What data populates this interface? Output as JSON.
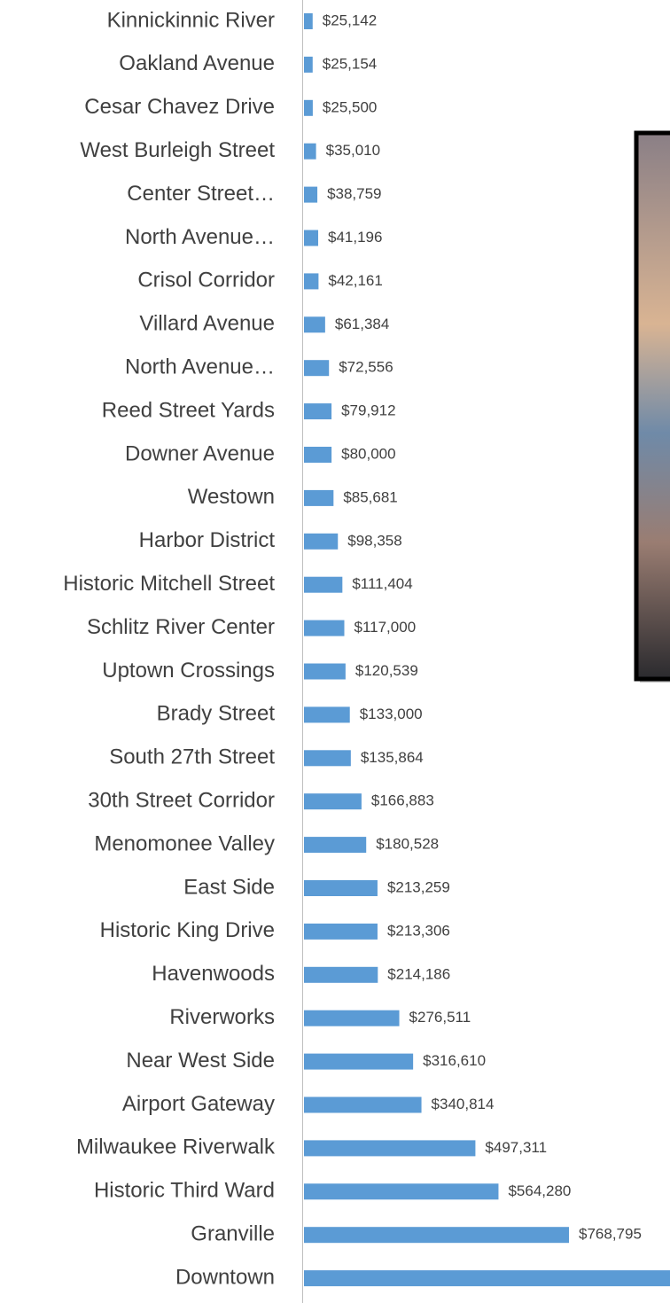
{
  "chart_data": {
    "type": "bar",
    "orientation": "horizontal",
    "color": "#5b9bd5",
    "categories": [
      "Kinnickinnic River",
      "Oakland Avenue",
      "Cesar Chavez Drive",
      "West Burleigh Street",
      "Center Street…",
      "North Avenue…",
      "Crisol Corridor",
      "Villard Avenue",
      "North Avenue…",
      "Reed Street Yards",
      "Downer Avenue",
      "Westown",
      "Harbor District",
      "Historic Mitchell Street",
      "Schlitz River Center",
      "Uptown Crossings",
      "Brady Street",
      "South 27th Street",
      "30th Street Corridor",
      "Menomonee Valley",
      "East Side",
      "Historic King Drive",
      "Havenwoods",
      "Riverworks",
      "Near West Side",
      "Airport Gateway",
      "Milwaukee Riverwalk",
      "Historic Third Ward",
      "Granville",
      "Downtown"
    ],
    "values": [
      25142,
      25154,
      25500,
      35010,
      38759,
      41196,
      42161,
      61384,
      72556,
      79912,
      80000,
      85681,
      98358,
      111404,
      117000,
      120539,
      133000,
      135864,
      166883,
      180528,
      213259,
      213306,
      214186,
      276511,
      316610,
      340814,
      497311,
      564280,
      768795,
      1100000
    ],
    "value_labels": [
      "$25,142",
      "$25,154",
      "$25,500",
      "$35,010",
      "$38,759",
      "$41,196",
      "$42,161",
      "$61,384",
      "$72,556",
      "$79,912",
      "$80,000",
      "$85,681",
      "$98,358",
      "$111,404",
      "$117,000",
      "$120,539",
      "$133,000",
      "$135,864",
      "$166,883",
      "$180,528",
      "$213,259",
      "$213,306",
      "$214,186",
      "$276,511",
      "$316,610",
      "$340,814",
      "$497,311",
      "$564,280",
      "$768,795",
      null
    ]
  }
}
